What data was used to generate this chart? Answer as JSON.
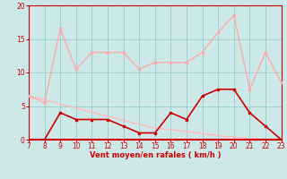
{
  "x": [
    7,
    8,
    9,
    10,
    11,
    12,
    13,
    14,
    15,
    16,
    17,
    18,
    19,
    20,
    21,
    22,
    23
  ],
  "rafales": [
    6.5,
    5.5,
    16.5,
    10.5,
    13,
    13,
    13,
    10.5,
    11.5,
    11.5,
    11.5,
    13,
    16,
    18.5,
    7.5,
    13,
    8.5
  ],
  "vitesse": [
    0,
    0,
    4,
    3,
    3,
    3,
    2,
    1,
    1,
    4,
    3,
    6.5,
    7.5,
    7.5,
    4,
    2,
    0
  ],
  "diagonal": [
    6.5,
    5.9,
    5.3,
    4.7,
    4.1,
    3.5,
    2.9,
    2.3,
    1.7,
    1.5,
    1.2,
    0.9,
    0.6,
    0.35,
    0.15,
    0.05,
    0.0
  ],
  "zero_line_y": 0,
  "xlim": [
    7,
    23
  ],
  "ylim": [
    0,
    20
  ],
  "yticks": [
    0,
    5,
    10,
    15,
    20
  ],
  "xticks": [
    7,
    8,
    9,
    10,
    11,
    12,
    13,
    14,
    15,
    16,
    17,
    18,
    19,
    20,
    21,
    22,
    23
  ],
  "xlabel": "Vent moyen/en rafales ( km/h )",
  "bg_color": "#cce8e8",
  "color_rafales": "#ffaaaa",
  "color_vitesse": "#cc0000",
  "color_diagonal": "#ffbbbb",
  "color_zero": "#dd0000",
  "grid_color": "#99cccc",
  "spine_color": "#cc0000",
  "tick_color": "#cc0000",
  "xlabel_color": "#cc0000"
}
